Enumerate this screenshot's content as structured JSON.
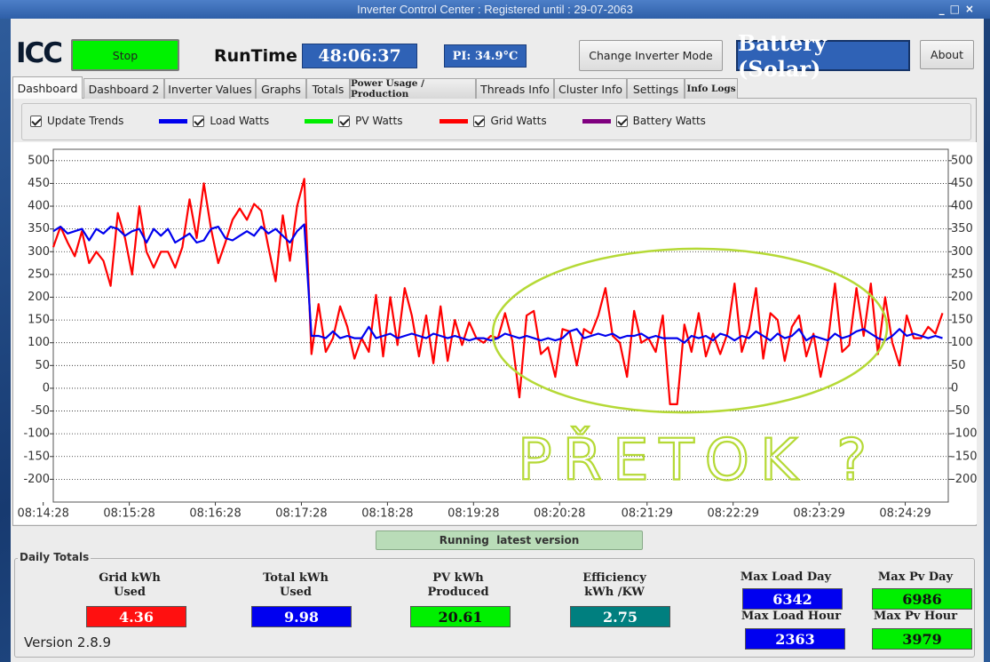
{
  "window": {
    "title": "Inverter Control Center : Registered until : 29-07-2063"
  },
  "toolbar": {
    "logo": "ICC",
    "stop": "Stop",
    "runtime_label": "RunTime",
    "runtime": "48:06:37",
    "pi": "PI: 34.9°C",
    "change_mode": "Change Inverter Mode",
    "mode": "Battery (Solar)",
    "about": "About"
  },
  "tabs": [
    "Dashboard",
    "Dashboard 2",
    "Inverter Values",
    "Graphs",
    "Totals",
    "Power Usage / Production",
    "Threads Info",
    "Cluster Info",
    "Settings",
    "Info Logs"
  ],
  "toggles": {
    "update_trends": "Update Trends"
  },
  "chart_data": {
    "type": "line",
    "x": [
      "08:14:35",
      "08:14:40",
      "08:14:45",
      "08:14:50",
      "08:14:55",
      "08:15:00",
      "08:15:05",
      "08:15:10",
      "08:15:15",
      "08:15:20",
      "08:15:25",
      "08:15:30",
      "08:15:35",
      "08:15:40",
      "08:15:45",
      "08:15:50",
      "08:15:55",
      "08:16:00",
      "08:16:05",
      "08:16:10",
      "08:16:15",
      "08:16:20",
      "08:16:25",
      "08:16:30",
      "08:16:35",
      "08:16:40",
      "08:16:45",
      "08:16:50",
      "08:16:55",
      "08:17:00",
      "08:17:05",
      "08:17:10",
      "08:17:15",
      "08:17:20",
      "08:17:25",
      "08:17:30",
      "08:17:35",
      "08:17:40",
      "08:17:45",
      "08:17:50",
      "08:17:55",
      "08:18:00",
      "08:18:05",
      "08:18:10",
      "08:18:15",
      "08:18:20",
      "08:18:25",
      "08:18:30",
      "08:18:35",
      "08:18:40",
      "08:18:45",
      "08:18:50",
      "08:18:55",
      "08:19:00",
      "08:19:05",
      "08:19:10",
      "08:19:15",
      "08:19:20",
      "08:19:25",
      "08:19:30",
      "08:19:35",
      "08:19:40",
      "08:19:45",
      "08:19:50",
      "08:19:55",
      "08:20:00",
      "08:20:05",
      "08:20:10",
      "08:20:15",
      "08:20:20",
      "08:20:25",
      "08:20:30",
      "08:20:35",
      "08:20:40",
      "08:20:45",
      "08:20:50",
      "08:20:55",
      "08:21:00",
      "08:21:05",
      "08:21:10",
      "08:21:15",
      "08:21:20",
      "08:21:25",
      "08:21:30",
      "08:21:35",
      "08:21:40",
      "08:21:45",
      "08:21:50",
      "08:21:55",
      "08:22:00",
      "08:22:05",
      "08:22:10",
      "08:22:15",
      "08:22:20",
      "08:22:25",
      "08:22:30",
      "08:22:35",
      "08:22:40",
      "08:22:45",
      "08:22:50",
      "08:22:55",
      "08:23:00",
      "08:23:05",
      "08:23:10",
      "08:23:15",
      "08:23:20",
      "08:23:25",
      "08:23:30",
      "08:23:35",
      "08:23:40",
      "08:23:45",
      "08:23:50",
      "08:23:55",
      "08:24:00",
      "08:24:05",
      "08:24:10",
      "08:24:15",
      "08:24:20",
      "08:24:25",
      "08:24:30",
      "08:24:35",
      "08:24:40",
      "08:24:45",
      "08:24:50",
      "08:24:55"
    ],
    "series": [
      {
        "name": "Load Watts",
        "color": "#0000ee",
        "values": [
          345,
          355,
          340,
          345,
          350,
          325,
          350,
          340,
          355,
          350,
          335,
          345,
          350,
          320,
          350,
          335,
          350,
          320,
          330,
          340,
          320,
          325,
          350,
          355,
          330,
          325,
          335,
          345,
          335,
          355,
          340,
          350,
          335,
          320,
          345,
          360,
          115,
          115,
          110,
          125,
          110,
          115,
          110,
          110,
          135,
          110,
          115,
          120,
          110,
          115,
          120,
          115,
          110,
          120,
          115,
          110,
          115,
          110,
          105,
          110,
          110,
          105,
          110,
          120,
          115,
          110,
          115,
          110,
          105,
          110,
          105,
          110,
          125,
          130,
          110,
          115,
          120,
          115,
          120,
          110,
          115,
          115,
          120,
          110,
          115,
          110,
          110,
          110,
          100,
          115,
          110,
          115,
          105,
          120,
          115,
          105,
          115,
          110,
          125,
          115,
          105,
          120,
          110,
          115,
          130,
          105,
          115,
          110,
          105,
          120,
          110,
          115,
          125,
          130,
          120,
          110,
          105,
          115,
          130,
          115,
          120,
          115,
          110,
          115,
          110
        ]
      },
      {
        "name": "PV Watts",
        "color": "#00ee00"
      },
      {
        "name": "Grid Watts",
        "color": "#ff0000",
        "values": [
          310,
          355,
          320,
          290,
          345,
          275,
          300,
          280,
          225,
          385,
          330,
          250,
          400,
          300,
          265,
          300,
          300,
          265,
          310,
          415,
          330,
          450,
          350,
          275,
          320,
          370,
          395,
          370,
          405,
          390,
          310,
          235,
          380,
          280,
          400,
          460,
          75,
          185,
          80,
          110,
          180,
          135,
          65,
          110,
          80,
          205,
          70,
          200,
          95,
          220,
          160,
          70,
          160,
          55,
          180,
          60,
          150,
          95,
          145,
          110,
          100,
          115,
          110,
          165,
          105,
          -20,
          160,
          170,
          75,
          90,
          25,
          130,
          125,
          50,
          130,
          120,
          160,
          220,
          115,
          100,
          25,
          170,
          100,
          110,
          80,
          160,
          -35,
          -35,
          140,
          80,
          165,
          70,
          120,
          75,
          120,
          230,
          80,
          130,
          220,
          65,
          165,
          150,
          60,
          135,
          160,
          70,
          120,
          25,
          100,
          230,
          80,
          95,
          220,
          115,
          230,
          75,
          200,
          100,
          50,
          160,
          110,
          110,
          135,
          120,
          165
        ]
      },
      {
        "name": "Battery Watts",
        "color": "#800080"
      }
    ],
    "xlim": [
      "08:14:35",
      "08:24:59"
    ],
    "xticks": [
      "08:14:28",
      "08:15:28",
      "08:16:28",
      "08:17:28",
      "08:18:28",
      "08:19:28",
      "08:20:28",
      "08:21:29",
      "08:22:29",
      "08:23:29",
      "08:24:29"
    ],
    "ylim": [
      -250,
      525
    ],
    "yticks": [
      -200,
      -150,
      -100,
      -50,
      0,
      50,
      100,
      150,
      200,
      250,
      300,
      350,
      400,
      450,
      500
    ],
    "grid": true,
    "annotations": [
      {
        "text": "PŘETOK ?",
        "color": "#b5d936"
      }
    ]
  },
  "status": "Running  latest version",
  "daily_totals": {
    "title": "Daily Totals",
    "items": [
      {
        "label": [
          "Grid kWh",
          "Used"
        ],
        "value": 4.36
      },
      {
        "label": [
          "Total kWh",
          "Used"
        ],
        "value": 9.98
      },
      {
        "label": [
          "PV kWh",
          "Produced"
        ],
        "value": 20.61
      },
      {
        "label": [
          "Efficiency",
          "kWh /KW"
        ],
        "value": 2.75
      }
    ],
    "max": [
      {
        "label": "Max Load Day",
        "value": 6342
      },
      {
        "label": "Max Pv Day",
        "value": 6986
      },
      {
        "label": "Max Load Hour",
        "value": 2363
      },
      {
        "label": "Max Pv Hour",
        "value": 3979
      }
    ]
  },
  "version": "Version 2.8.9"
}
